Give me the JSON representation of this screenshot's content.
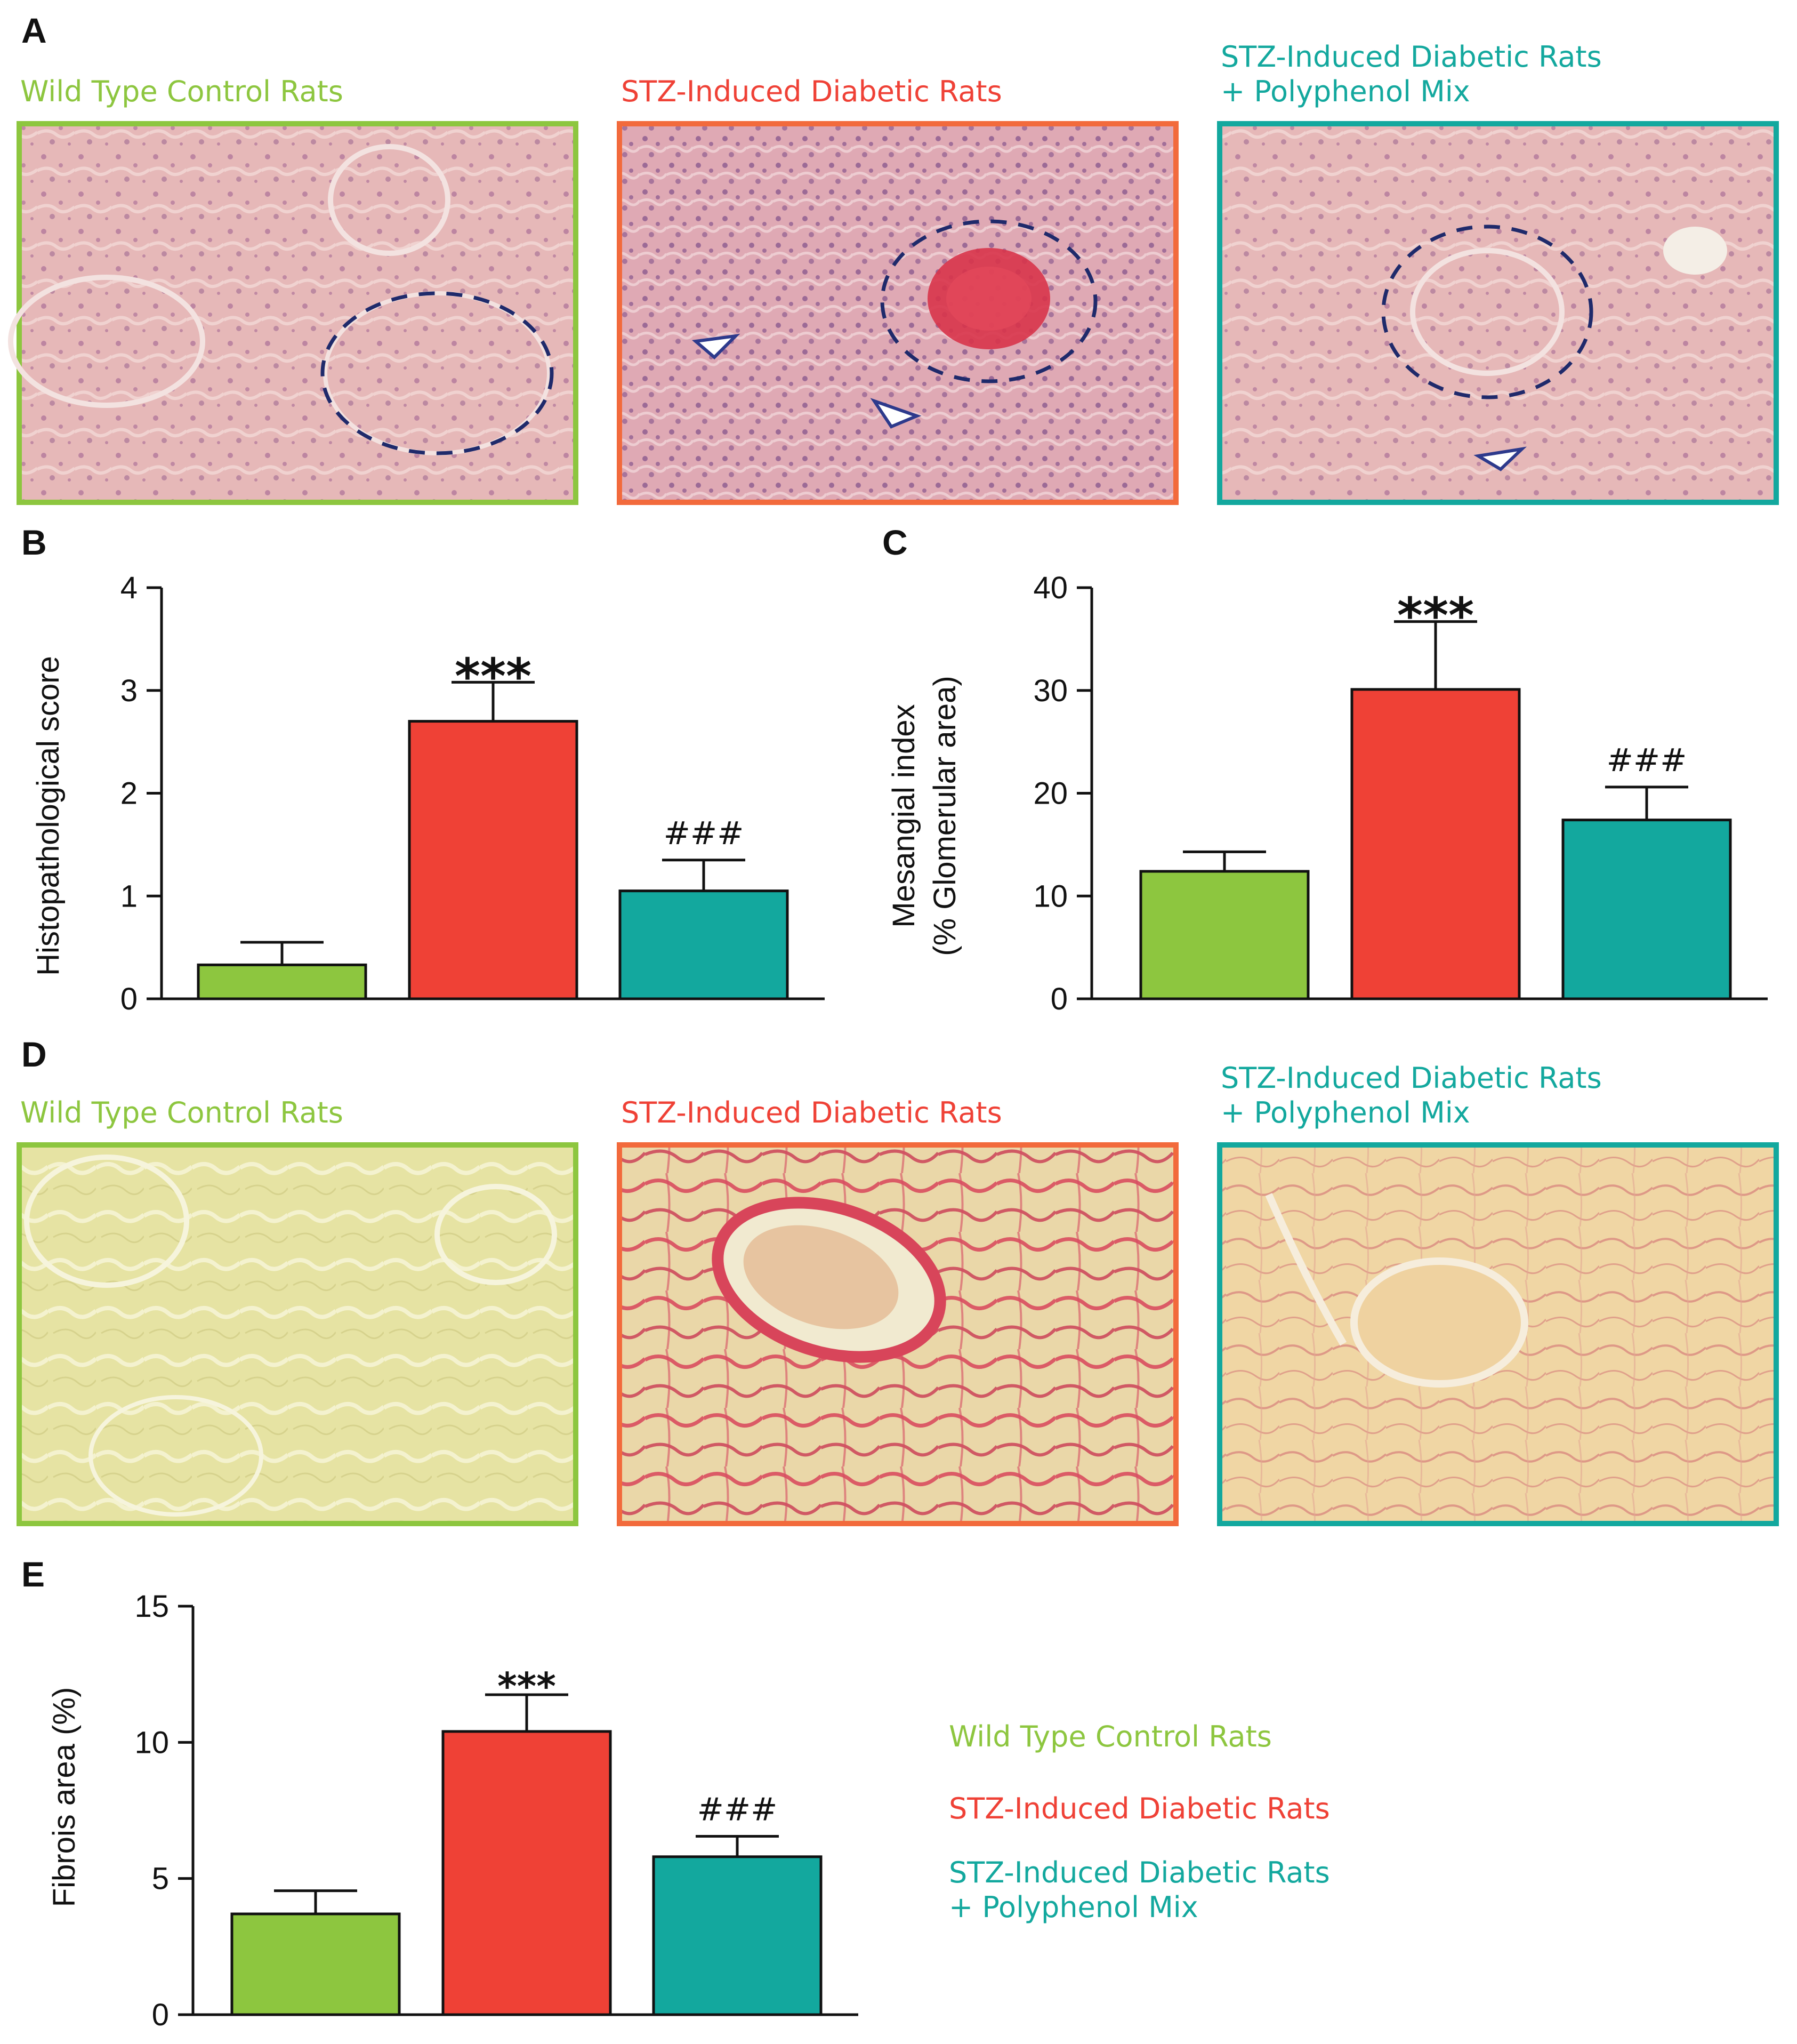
{
  "panels": {
    "A": "A",
    "B": "B",
    "C": "C",
    "D": "D",
    "E": "E"
  },
  "colors": {
    "wild_type": "#8dc63f",
    "stz": "#ef4136",
    "stz_poly": "#13a89e",
    "stz_frame": "#f26a3c",
    "axis": "#111111"
  },
  "groups": {
    "wild_type": "Wild Type Control Rats",
    "stz": "STZ-Induced Diabetic Rats",
    "stz_poly_line1": "STZ-Induced Diabetic Rats",
    "stz_poly_line2": "+ Polyphenol Mix"
  },
  "micrographs": {
    "he_stain": [
      "wild-type-he-micrograph",
      "stz-he-micrograph",
      "stz-polyphenol-he-micrograph"
    ],
    "sirius_red": [
      "wild-type-sirius-micrograph",
      "stz-sirius-micrograph",
      "stz-polyphenol-sirius-micrograph"
    ]
  },
  "chart_data": [
    {
      "id": "B",
      "type": "bar",
      "categories": [
        "Wild Type Control Rats",
        "STZ-Induced Diabetic Rats",
        "STZ-Induced Diabetic Rats + Polyphenol Mix"
      ],
      "values": [
        0.33,
        2.7,
        1.05
      ],
      "errors": [
        0.22,
        0.38,
        0.3
      ],
      "annotations": [
        "",
        "***",
        "###"
      ],
      "ylabel": "Histopathological score",
      "ylim": [
        0,
        4
      ],
      "yticks": [
        0,
        1,
        2,
        3,
        4
      ]
    },
    {
      "id": "C",
      "type": "bar",
      "categories": [
        "Wild Type Control Rats",
        "STZ-Induced Diabetic Rats",
        "STZ-Induced Diabetic Rats + Polyphenol Mix"
      ],
      "values": [
        12.4,
        30.1,
        17.4
      ],
      "errors": [
        1.9,
        6.6,
        3.2
      ],
      "annotations": [
        "",
        "***",
        "###"
      ],
      "ylabel_line1": "Mesangial index",
      "ylabel_line2": "(% Glomerular area)",
      "ylim": [
        0,
        40
      ],
      "yticks": [
        0,
        10,
        20,
        30,
        40
      ]
    },
    {
      "id": "E",
      "type": "bar",
      "categories": [
        "Wild Type Control Rats",
        "STZ-Induced Diabetic Rats",
        "STZ-Induced Diabetic Rats + Polyphenol Mix"
      ],
      "values": [
        3.7,
        10.4,
        5.8
      ],
      "errors": [
        0.85,
        1.35,
        0.75
      ],
      "annotations": [
        "",
        "***",
        "###"
      ],
      "ylabel": "Fibrois area (%)",
      "ylim": [
        0,
        15
      ],
      "yticks": [
        0,
        5,
        10,
        15
      ]
    }
  ],
  "legend": {
    "items": [
      "Wild Type Control Rats",
      "STZ-Induced Diabetic Rats",
      "STZ-Induced Diabetic Rats"
    ],
    "item3_line2": "+ Polyphenol Mix"
  }
}
